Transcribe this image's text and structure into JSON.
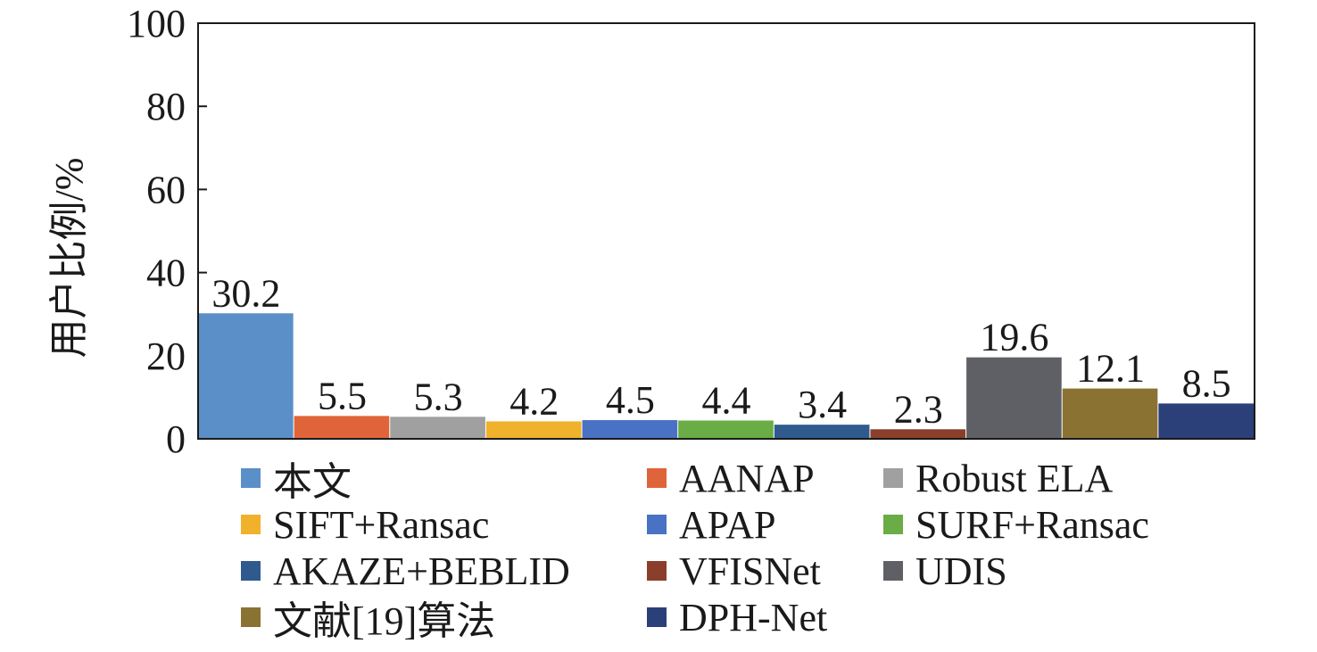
{
  "chart_data": {
    "type": "bar",
    "title": "",
    "xlabel": "",
    "ylabel": "用户比例/%",
    "ylim": [
      0,
      100
    ],
    "yticks": [
      0,
      20,
      40,
      60,
      80,
      100
    ],
    "grid": false,
    "legend_position": "bottom",
    "categories": [
      "本文",
      "AANAP",
      "Robust ELA",
      "SIFT+Ransac",
      "APAP",
      "SURF+Ransac",
      "AKAZE+BEBLID",
      "VFISNet",
      "UDIS",
      "文献[19]算法",
      "DPH-Net"
    ],
    "values": [
      30.2,
      5.5,
      5.3,
      4.2,
      4.5,
      4.4,
      3.4,
      2.3,
      19.6,
      12.1,
      8.5
    ],
    "value_labels": [
      "30.2",
      "5.5",
      "5.3",
      "4.2",
      "4.5",
      "4.4",
      "3.4",
      "2.3",
      "19.6",
      "12.1",
      "8.5"
    ],
    "colors": [
      "#5b8fc7",
      "#e0643a",
      "#a0a0a0",
      "#f0b12b",
      "#4a72c4",
      "#6aac45",
      "#2f5a8e",
      "#8b3f2a",
      "#5e6066",
      "#8a7232",
      "#2b3f78"
    ]
  }
}
